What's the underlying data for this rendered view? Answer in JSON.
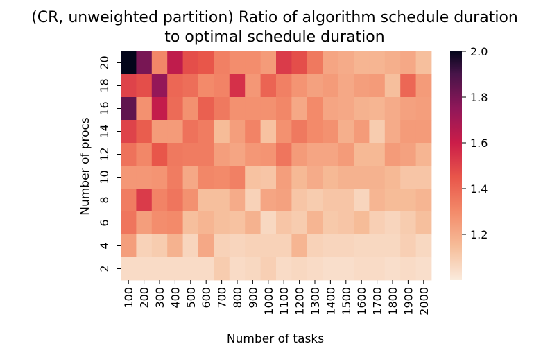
{
  "chart_data": {
    "type": "heatmap",
    "title": "(CR, unweighted partition) Ratio of algorithm schedule duration to optimal schedule duration",
    "title_lines": [
      "(CR, unweighted partition) Ratio of algorithm schedule duration",
      "to optimal schedule duration"
    ],
    "xlabel": "Number of tasks",
    "ylabel": "Number of procs",
    "x_categories": [
      "100",
      "200",
      "300",
      "400",
      "500",
      "600",
      "700",
      "800",
      "900",
      "1000",
      "1100",
      "1200",
      "1300",
      "1400",
      "1500",
      "1600",
      "1700",
      "1800",
      "1900",
      "2000"
    ],
    "y_categories": [
      "20",
      "18",
      "16",
      "14",
      "12",
      "10",
      "8",
      "6",
      "4",
      "2"
    ],
    "y_tick_labels_shown": [
      "20",
      "18",
      "16",
      "14",
      "12",
      "10",
      "8",
      "6",
      "4",
      "2"
    ],
    "colorbar": {
      "vmin": 1.0,
      "vmax": 2.0,
      "ticks": [
        1.2,
        1.4,
        1.6,
        1.8,
        2.0
      ],
      "tick_labels": [
        "1.2",
        "1.4",
        "1.6",
        "1.8",
        "2.0"
      ],
      "colormap": "rocket_r"
    },
    "values": [
      [
        2.0,
        1.8,
        1.31,
        1.63,
        1.47,
        1.45,
        1.33,
        1.29,
        1.29,
        1.25,
        1.52,
        1.47,
        1.35,
        1.22,
        1.2,
        1.17,
        1.17,
        1.19,
        1.21,
        1.14
      ],
      [
        1.5,
        1.47,
        1.74,
        1.4,
        1.38,
        1.3,
        1.32,
        1.55,
        1.26,
        1.41,
        1.33,
        1.27,
        1.23,
        1.25,
        1.21,
        1.24,
        1.25,
        1.14,
        1.4,
        1.25
      ],
      [
        1.85,
        1.28,
        1.62,
        1.39,
        1.28,
        1.42,
        1.35,
        1.28,
        1.28,
        1.28,
        1.31,
        1.21,
        1.3,
        1.22,
        1.21,
        1.18,
        1.17,
        1.2,
        1.23,
        1.24
      ],
      [
        1.5,
        1.43,
        1.25,
        1.25,
        1.37,
        1.34,
        1.15,
        1.24,
        1.32,
        1.13,
        1.28,
        1.35,
        1.3,
        1.28,
        1.19,
        1.25,
        1.1,
        1.2,
        1.25,
        1.25
      ],
      [
        1.37,
        1.31,
        1.45,
        1.35,
        1.34,
        1.34,
        1.24,
        1.22,
        1.26,
        1.27,
        1.36,
        1.25,
        1.22,
        1.22,
        1.25,
        1.16,
        1.16,
        1.25,
        1.23,
        1.17
      ],
      [
        1.26,
        1.26,
        1.27,
        1.34,
        1.21,
        1.31,
        1.3,
        1.33,
        1.13,
        1.12,
        1.24,
        1.16,
        1.2,
        1.16,
        1.18,
        1.18,
        1.18,
        1.16,
        1.12,
        1.12
      ],
      [
        1.34,
        1.52,
        1.32,
        1.36,
        1.28,
        1.14,
        1.14,
        1.2,
        1.08,
        1.22,
        1.23,
        1.12,
        1.1,
        1.12,
        1.12,
        1.07,
        1.17,
        1.15,
        1.15,
        1.17
      ],
      [
        1.36,
        1.24,
        1.29,
        1.3,
        1.14,
        1.17,
        1.14,
        1.13,
        1.18,
        1.06,
        1.12,
        1.1,
        1.17,
        1.11,
        1.12,
        1.15,
        1.09,
        1.07,
        1.1,
        1.14
      ],
      [
        1.24,
        1.08,
        1.1,
        1.18,
        1.07,
        1.21,
        1.08,
        1.07,
        1.08,
        1.08,
        1.08,
        1.17,
        1.08,
        1.07,
        1.07,
        1.06,
        1.06,
        1.06,
        1.09,
        1.06
      ],
      [
        1.05,
        1.05,
        1.05,
        1.05,
        1.05,
        1.05,
        1.1,
        1.05,
        1.06,
        1.09,
        1.05,
        1.06,
        1.05,
        1.04,
        1.04,
        1.05,
        1.05,
        1.04,
        1.05,
        1.04
      ]
    ]
  }
}
